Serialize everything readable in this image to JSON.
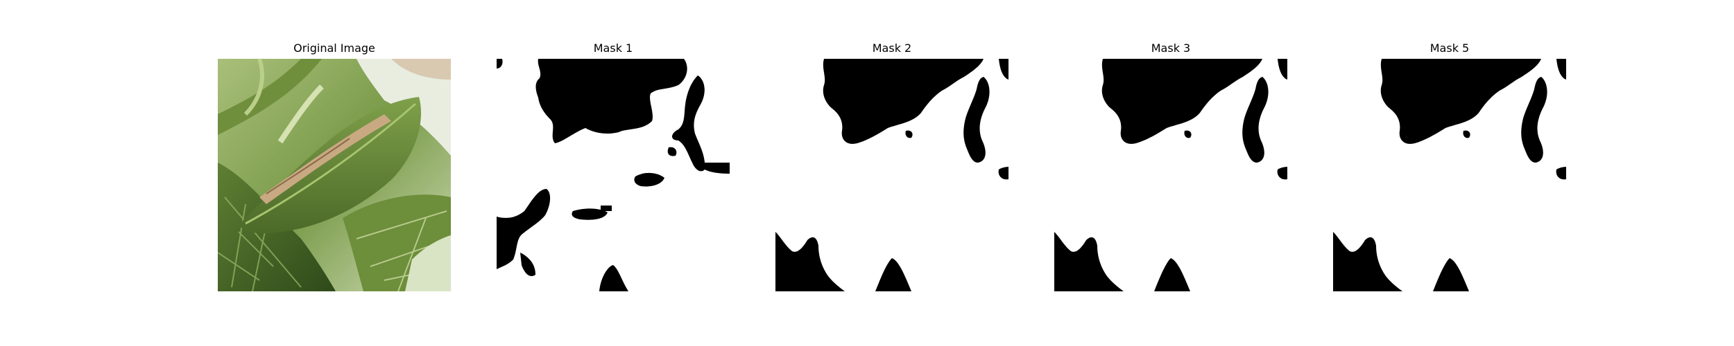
{
  "panels": [
    {
      "title": "Original Image",
      "kind": "photo"
    },
    {
      "title": "Mask 1",
      "kind": "mask"
    },
    {
      "title": "Mask 2",
      "kind": "mask"
    },
    {
      "title": "Mask 3",
      "kind": "mask"
    },
    {
      "title": "Mask 5",
      "kind": "mask"
    }
  ],
  "colors": {
    "mask_foreground": "#000000",
    "mask_background": "#ffffff",
    "leaf_dark": "#3c5a22",
    "leaf_mid": "#6f8f3c",
    "leaf_light": "#b9cf8a",
    "background_light": "#e6ecdc",
    "damage_tan": "#c5a27a"
  }
}
